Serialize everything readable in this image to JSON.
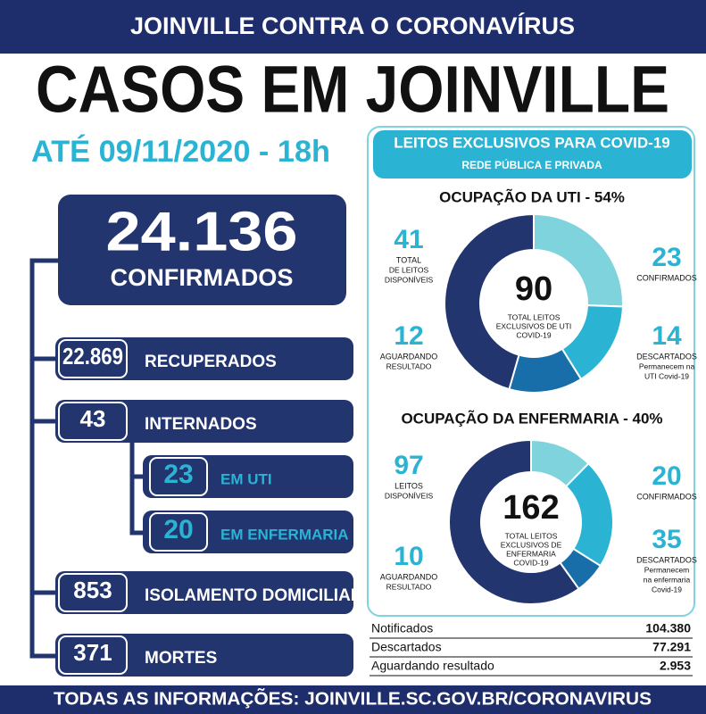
{
  "banner": "JOINVILLE CONTRA O CORONAVÍRUS",
  "title": "CASOS EM JOINVILLE",
  "date": "ATÉ 09/11/2020 - 18h",
  "confirmed": {
    "value": "24.136",
    "label": "CONFIRMADOS"
  },
  "stats": [
    {
      "value": "22.869",
      "label": "RECUPERADOS"
    },
    {
      "value": "43",
      "label": "INTERNADOS"
    },
    {
      "value": "853",
      "label": "ISOLAMENTO DOMICILIAR"
    },
    {
      "value": "371",
      "label": "MORTES"
    }
  ],
  "hospitalized": [
    {
      "value": "23",
      "label": "EM UTI"
    },
    {
      "value": "20",
      "label": "EM ENFERMARIA"
    }
  ],
  "beds": {
    "title": "LEITOS EXCLUSIVOS PARA COVID-19",
    "subtitle": "REDE PÚBLICA E PRIVADA"
  },
  "donuts": [
    {
      "title": "OCUPAÇÃO DA UTI - 54%",
      "total": 90,
      "center_label": [
        "TOTAL LEITOS",
        "EXCLUSIVOS DE UTI",
        "COVID-19"
      ],
      "segments": [
        {
          "value": 23,
          "label": [
            "CONFIRMADOS"
          ],
          "color": "#7fd3dc"
        },
        {
          "value": 14,
          "label": [
            "DESCARTADOS",
            "Permanecem na",
            "UTI Covid-19"
          ],
          "color": "#2bb3d3"
        },
        {
          "value": 12,
          "label": [
            "AGUARDANDO",
            "RESULTADO"
          ],
          "color": "#176ea8"
        },
        {
          "value": 41,
          "label": [
            "TOTAL",
            "DE LEITOS",
            "DISPONÍVEIS"
          ],
          "color": "#22356f"
        }
      ]
    },
    {
      "title": "OCUPAÇÃO DA ENFERMARIA - 40%",
      "total": 162,
      "center_label": [
        "TOTAL LEITOS",
        "EXCLUSIVOS DE",
        "ENFERMARIA",
        "COVID-19"
      ],
      "segments": [
        {
          "value": 20,
          "label": [
            "CONFIRMADOS"
          ],
          "color": "#7fd3dc"
        },
        {
          "value": 35,
          "label": [
            "DESCARTADOS",
            "Permanecem",
            "na enfermaria",
            "Covid-19"
          ],
          "color": "#2bb3d3"
        },
        {
          "value": 10,
          "label": [
            "AGUARDANDO",
            "RESULTADO"
          ],
          "color": "#176ea8"
        },
        {
          "value": 97,
          "label": [
            "LEITOS",
            "DISPONÍVEIS"
          ],
          "color": "#22356f"
        }
      ]
    }
  ],
  "table": [
    [
      "Notificados",
      "104.380"
    ],
    [
      "Descartados",
      "77.291"
    ],
    [
      "Aguardando resultado",
      "2.953"
    ]
  ],
  "footer": "TODAS AS INFORMAÇÕES: JOINVILLE.SC.GOV.BR/CORONAVIRUS"
}
